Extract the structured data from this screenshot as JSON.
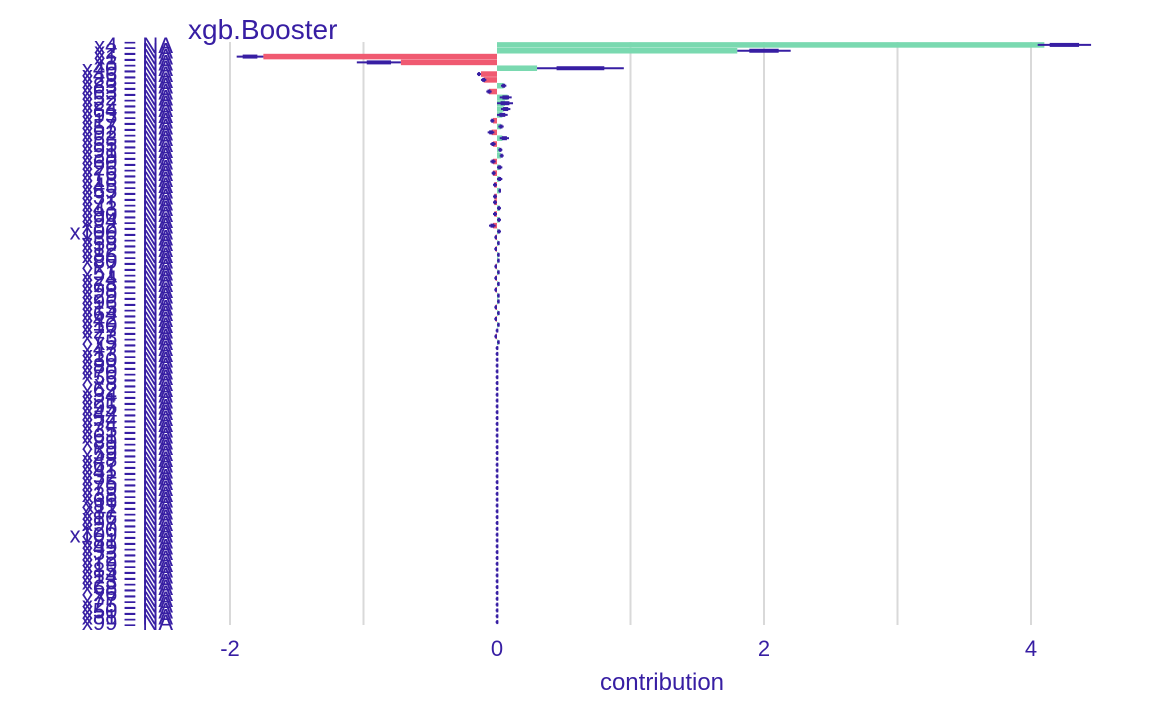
{
  "chart_data": {
    "type": "bar",
    "title": "xgb.Booster",
    "xlabel": "contribution",
    "ylabel": "",
    "xlim": [
      -2.5,
      4.5
    ],
    "xticks": [
      -2,
      0,
      2,
      4
    ],
    "xtick_labels": [
      "-2",
      "0",
      "2",
      "4"
    ],
    "grid": "vertical",
    "orientation": "horizontal",
    "colors": {
      "positive": "#7ad9b0",
      "negative": "#f05a71",
      "boxplot": "#371ea3",
      "text": "#371ea3",
      "grid": "#d9d9d9"
    },
    "categories": [
      "x4 = NA",
      "x2 = NA",
      "x1 = NA",
      "x3 = NA",
      "x40 = NA",
      "x46 = NA",
      "x28 = NA",
      "x83 = NA",
      "x63 = NA",
      "x52 = NA",
      "x22 = NA",
      "x84 = NA",
      "x93 = NA",
      "x17 = NA",
      "x57 = NA",
      "x92 = NA",
      "x53 = NA",
      "x55 = NA",
      "x91 = NA",
      "x39 = NA",
      "x60 = NA",
      "x26 = NA",
      "x76 = NA",
      "x18 = NA",
      "x45 = NA",
      "x65 = NA",
      "x37 = NA",
      "x71 = NA",
      "x43 = NA",
      "x90 = NA",
      "x94 = NA",
      "x82 = NA",
      "x100 = NA",
      "x36 = NA",
      "x58 = NA",
      "x12 = NA",
      "x86 = NA",
      "x80 = NA",
      "x7 = NA",
      "x51 = NA",
      "x24 = NA",
      "x78 = NA",
      "x98 = NA",
      "x29 = NA",
      "x96 = NA",
      "x15 = NA",
      "x64 = NA",
      "x42 = NA",
      "x10 = NA",
      "x27 = NA",
      "x73 = NA",
      "x5 = NA",
      "x47 = NA",
      "x13 = NA",
      "x30 = NA",
      "x88 = NA",
      "x70 = NA",
      "x56 = NA",
      "x8 = NA",
      "x62 = NA",
      "x34 = NA",
      "x21 = NA",
      "x95 = NA",
      "x44 = NA",
      "x54 = NA",
      "x74 = NA",
      "x35 = NA",
      "x61 = NA",
      "x89 = NA",
      "x9 = NA",
      "x59 = NA",
      "x48 = NA",
      "x67 = NA",
      "x41 = NA",
      "x32 = NA",
      "x75 = NA",
      "x79 = NA",
      "x38 = NA",
      "x66 = NA",
      "x11 = NA",
      "x87 = NA",
      "x16 = NA",
      "x97 = NA",
      "x20 = NA",
      "x109 = NA",
      "x81 = NA",
      "x49 = NA",
      "x33 = NA",
      "x72 = NA",
      "x19 = NA",
      "x85 = NA",
      "x14 = NA",
      "x23 = NA",
      "x68 = NA",
      "x6 = NA",
      "x77 = NA",
      "x25 = NA",
      "x50 = NA",
      "x31 = NA",
      "x99 = NA"
    ],
    "values": [
      4.1,
      1.8,
      -1.75,
      -0.72,
      0.3,
      -0.12,
      -0.1,
      0.05,
      -0.06,
      0.08,
      0.06,
      0.05,
      0.04,
      -0.03,
      0.03,
      -0.04,
      0.04,
      -0.03,
      0.02,
      0.03,
      -0.03,
      0.02,
      -0.03,
      0.02,
      -0.02,
      0.02,
      -0.02,
      -0.02,
      0.02,
      -0.02,
      0.02,
      -0.03,
      0.01,
      -0.01,
      0.01,
      -0.01,
      0.01,
      0.01,
      -0.01,
      0.01,
      -0.01,
      0.01,
      -0.01,
      0.01,
      0.01,
      -0.01,
      0.01,
      -0.01,
      0.01,
      0.0,
      -0.01,
      0.01,
      0.0,
      0.0,
      0.0,
      0.0,
      0.0,
      0.0,
      0.0,
      0.0,
      0.0,
      0.0,
      0.0,
      0.0,
      0.0,
      0.0,
      0.0,
      0.0,
      0.0,
      0.0,
      0.0,
      0.0,
      0.0,
      0.0,
      0.0,
      0.0,
      0.0,
      0.0,
      0.0,
      0.0,
      0.0,
      0.0,
      0.0,
      0.0,
      0.0,
      0.0,
      0.0,
      0.0,
      0.0,
      0.0,
      0.0,
      0.0,
      0.0,
      0.0,
      0.0,
      0.0,
      0.0,
      0.0,
      0.0,
      0.0
    ],
    "box_ranges": [
      [
        4.05,
        4.45
      ],
      [
        1.8,
        2.2
      ],
      [
        -1.95,
        -1.75
      ],
      [
        -1.05,
        -0.72
      ],
      [
        0.3,
        0.95
      ],
      [
        -0.15,
        -0.12
      ],
      [
        -0.12,
        -0.08
      ],
      [
        0.03,
        0.07
      ],
      [
        -0.08,
        -0.04
      ],
      [
        0.02,
        0.11
      ],
      [
        0.0,
        0.12
      ],
      [
        0.03,
        0.1
      ],
      [
        0.0,
        0.08
      ],
      [
        -0.05,
        -0.02
      ],
      [
        0.01,
        0.05
      ],
      [
        -0.07,
        -0.02
      ],
      [
        0.02,
        0.09
      ],
      [
        -0.05,
        -0.01
      ],
      [
        0.01,
        0.04
      ],
      [
        0.02,
        0.05
      ],
      [
        -0.05,
        -0.01
      ],
      [
        0.0,
        0.04
      ],
      [
        -0.04,
        -0.01
      ],
      [
        0.0,
        0.04
      ],
      [
        -0.03,
        0.0
      ],
      [
        0.01,
        0.03
      ],
      [
        -0.03,
        0.0
      ],
      [
        -0.03,
        0.0
      ],
      [
        0.0,
        0.03
      ],
      [
        -0.03,
        0.0
      ],
      [
        0.0,
        0.03
      ],
      [
        -0.06,
        -0.01
      ],
      [
        0.0,
        0.03
      ],
      [
        -0.02,
        0.0
      ],
      [
        0.0,
        0.02
      ],
      [
        -0.02,
        0.0
      ],
      [
        0.0,
        0.02
      ],
      [
        0.0,
        0.02
      ],
      [
        -0.02,
        0.0
      ],
      [
        0.0,
        0.02
      ],
      [
        -0.02,
        0.0
      ],
      [
        0.0,
        0.02
      ],
      [
        -0.02,
        0.0
      ],
      [
        0.0,
        0.02
      ],
      [
        0.0,
        0.02
      ],
      [
        -0.02,
        0.0
      ],
      [
        0.0,
        0.02
      ],
      [
        -0.02,
        0.0
      ],
      [
        0.0,
        0.02
      ],
      [
        -0.01,
        0.01
      ],
      [
        -0.02,
        0.0
      ],
      [
        0.0,
        0.02
      ],
      [
        -0.01,
        0.01
      ],
      [
        -0.01,
        0.01
      ],
      [
        -0.01,
        0.01
      ],
      [
        -0.01,
        0.01
      ],
      [
        -0.01,
        0.01
      ],
      [
        -0.01,
        0.01
      ],
      [
        -0.01,
        0.01
      ],
      [
        -0.01,
        0.01
      ],
      [
        -0.01,
        0.01
      ],
      [
        -0.01,
        0.01
      ],
      [
        -0.01,
        0.01
      ],
      [
        -0.01,
        0.01
      ],
      [
        -0.01,
        0.01
      ],
      [
        -0.01,
        0.01
      ],
      [
        -0.01,
        0.01
      ],
      [
        -0.01,
        0.01
      ],
      [
        -0.01,
        0.01
      ],
      [
        -0.01,
        0.01
      ],
      [
        -0.01,
        0.01
      ],
      [
        -0.01,
        0.01
      ],
      [
        -0.01,
        0.01
      ],
      [
        -0.01,
        0.01
      ],
      [
        -0.01,
        0.01
      ],
      [
        -0.01,
        0.01
      ],
      [
        -0.01,
        0.01
      ],
      [
        -0.01,
        0.01
      ],
      [
        -0.01,
        0.01
      ],
      [
        -0.01,
        0.01
      ],
      [
        -0.01,
        0.01
      ],
      [
        -0.01,
        0.01
      ],
      [
        -0.01,
        0.01
      ],
      [
        -0.01,
        0.01
      ],
      [
        -0.01,
        0.01
      ],
      [
        -0.01,
        0.01
      ],
      [
        -0.01,
        0.01
      ],
      [
        -0.01,
        0.01
      ],
      [
        -0.01,
        0.01
      ],
      [
        -0.01,
        0.01
      ],
      [
        -0.01,
        0.01
      ],
      [
        -0.01,
        0.01
      ],
      [
        -0.01,
        0.01
      ],
      [
        -0.01,
        0.01
      ],
      [
        -0.01,
        0.01
      ],
      [
        -0.01,
        0.01
      ],
      [
        -0.01,
        0.01
      ],
      [
        -0.01,
        0.01
      ],
      [
        -0.01,
        0.01
      ],
      [
        -0.01,
        0.01
      ]
    ]
  }
}
